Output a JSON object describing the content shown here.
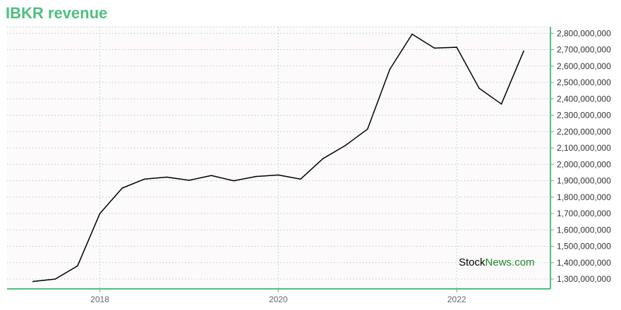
{
  "title": "IBKR revenue",
  "watermark": {
    "part1": "Stock",
    "part2": "News.com"
  },
  "colors": {
    "accent": "#4fbf7f",
    "line": "#000000",
    "grid": "#9fd9b8",
    "plot_bg": "#fdfafc",
    "watermark_green": "#1a8a2a"
  },
  "chart_data": {
    "type": "line",
    "title": "IBKR revenue",
    "xlabel": "",
    "ylabel": "",
    "y_axis_position": "right",
    "grid": true,
    "x_ticks": [
      "2018",
      "2020",
      "2022"
    ],
    "x_range": [
      2016.96,
      2023.05
    ],
    "ylim": [
      1240000000,
      2840000000
    ],
    "y_ticks": [
      1300000000,
      1400000000,
      1500000000,
      1600000000,
      1700000000,
      1800000000,
      1900000000,
      2000000000,
      2100000000,
      2200000000,
      2300000000,
      2400000000,
      2500000000,
      2600000000,
      2700000000,
      2800000000
    ],
    "y_tick_labels": [
      "1,300,000,000",
      "1,400,000,000",
      "1,500,000,000",
      "1,600,000,000",
      "1,700,000,000",
      "1,800,000,000",
      "1,900,000,000",
      "2,000,000,000",
      "2,100,000,000",
      "2,200,000,000",
      "2,300,000,000",
      "2,400,000,000",
      "2,500,000,000",
      "2,600,000,000",
      "2,700,000,000",
      "2,800,000,000"
    ],
    "series": [
      {
        "x": [
          2017.25,
          2017.5,
          2017.75,
          2018.0,
          2018.25,
          2018.5,
          2018.75,
          2019.0,
          2019.25,
          2019.5,
          2019.75,
          2020.0,
          2020.25,
          2020.5,
          2020.75,
          2021.0,
          2021.25,
          2021.5,
          2021.75,
          2022.0,
          2022.25,
          2022.5,
          2022.75
        ],
        "values": [
          1285000000,
          1300000000,
          1380000000,
          1700000000,
          1855000000,
          1910000000,
          1922000000,
          1903000000,
          1932000000,
          1900000000,
          1926000000,
          1935000000,
          1910000000,
          2035000000,
          2115000000,
          2215000000,
          2580000000,
          2795000000,
          2710000000,
          2715000000,
          2465000000,
          2368000000,
          2692000000
        ]
      }
    ]
  }
}
